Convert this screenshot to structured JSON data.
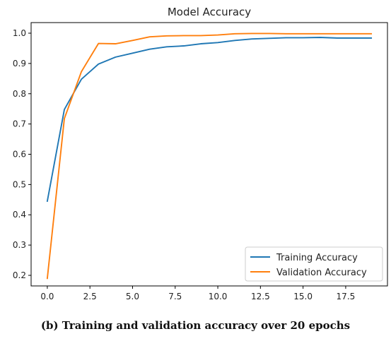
{
  "caption": "(b) Training and validation accuracy over 20 epochs",
  "chart_data": {
    "type": "line",
    "title": "Model Accuracy",
    "xlabel": "",
    "ylabel": "",
    "xlim": [
      -0.95,
      19.95
    ],
    "ylim": [
      0.165,
      1.035
    ],
    "xticks": [
      0,
      2.5,
      5,
      7.5,
      10,
      12.5,
      15,
      17.5
    ],
    "xtick_labels": [
      "0.0",
      "2.5",
      "5.0",
      "7.5",
      "10.0",
      "12.5",
      "15.0",
      "17.5"
    ],
    "yticks": [
      0.2,
      0.3,
      0.4,
      0.5,
      0.6,
      0.7,
      0.8,
      0.9,
      1.0
    ],
    "ytick_labels": [
      "0.2",
      "0.3",
      "0.4",
      "0.5",
      "0.6",
      "0.7",
      "0.8",
      "0.9",
      "1.0"
    ],
    "grid": false,
    "legend_position": "lower-right",
    "x": [
      0,
      1,
      2,
      3,
      4,
      5,
      6,
      7,
      8,
      9,
      10,
      11,
      12,
      13,
      14,
      15,
      16,
      17,
      18,
      19
    ],
    "series": [
      {
        "name": "Training Accuracy",
        "color": "#1f77b4",
        "values": [
          0.445,
          0.748,
          0.848,
          0.898,
          0.921,
          0.934,
          0.947,
          0.955,
          0.958,
          0.965,
          0.969,
          0.976,
          0.981,
          0.983,
          0.985,
          0.985,
          0.986,
          0.984,
          0.984,
          0.984
        ]
      },
      {
        "name": "Validation Accuracy",
        "color": "#ff7f0e",
        "values": [
          0.19,
          0.718,
          0.873,
          0.966,
          0.965,
          0.976,
          0.988,
          0.991,
          0.992,
          0.992,
          0.994,
          0.998,
          0.999,
          0.999,
          0.998,
          0.998,
          0.998,
          0.998,
          0.998,
          0.998
        ]
      }
    ]
  }
}
